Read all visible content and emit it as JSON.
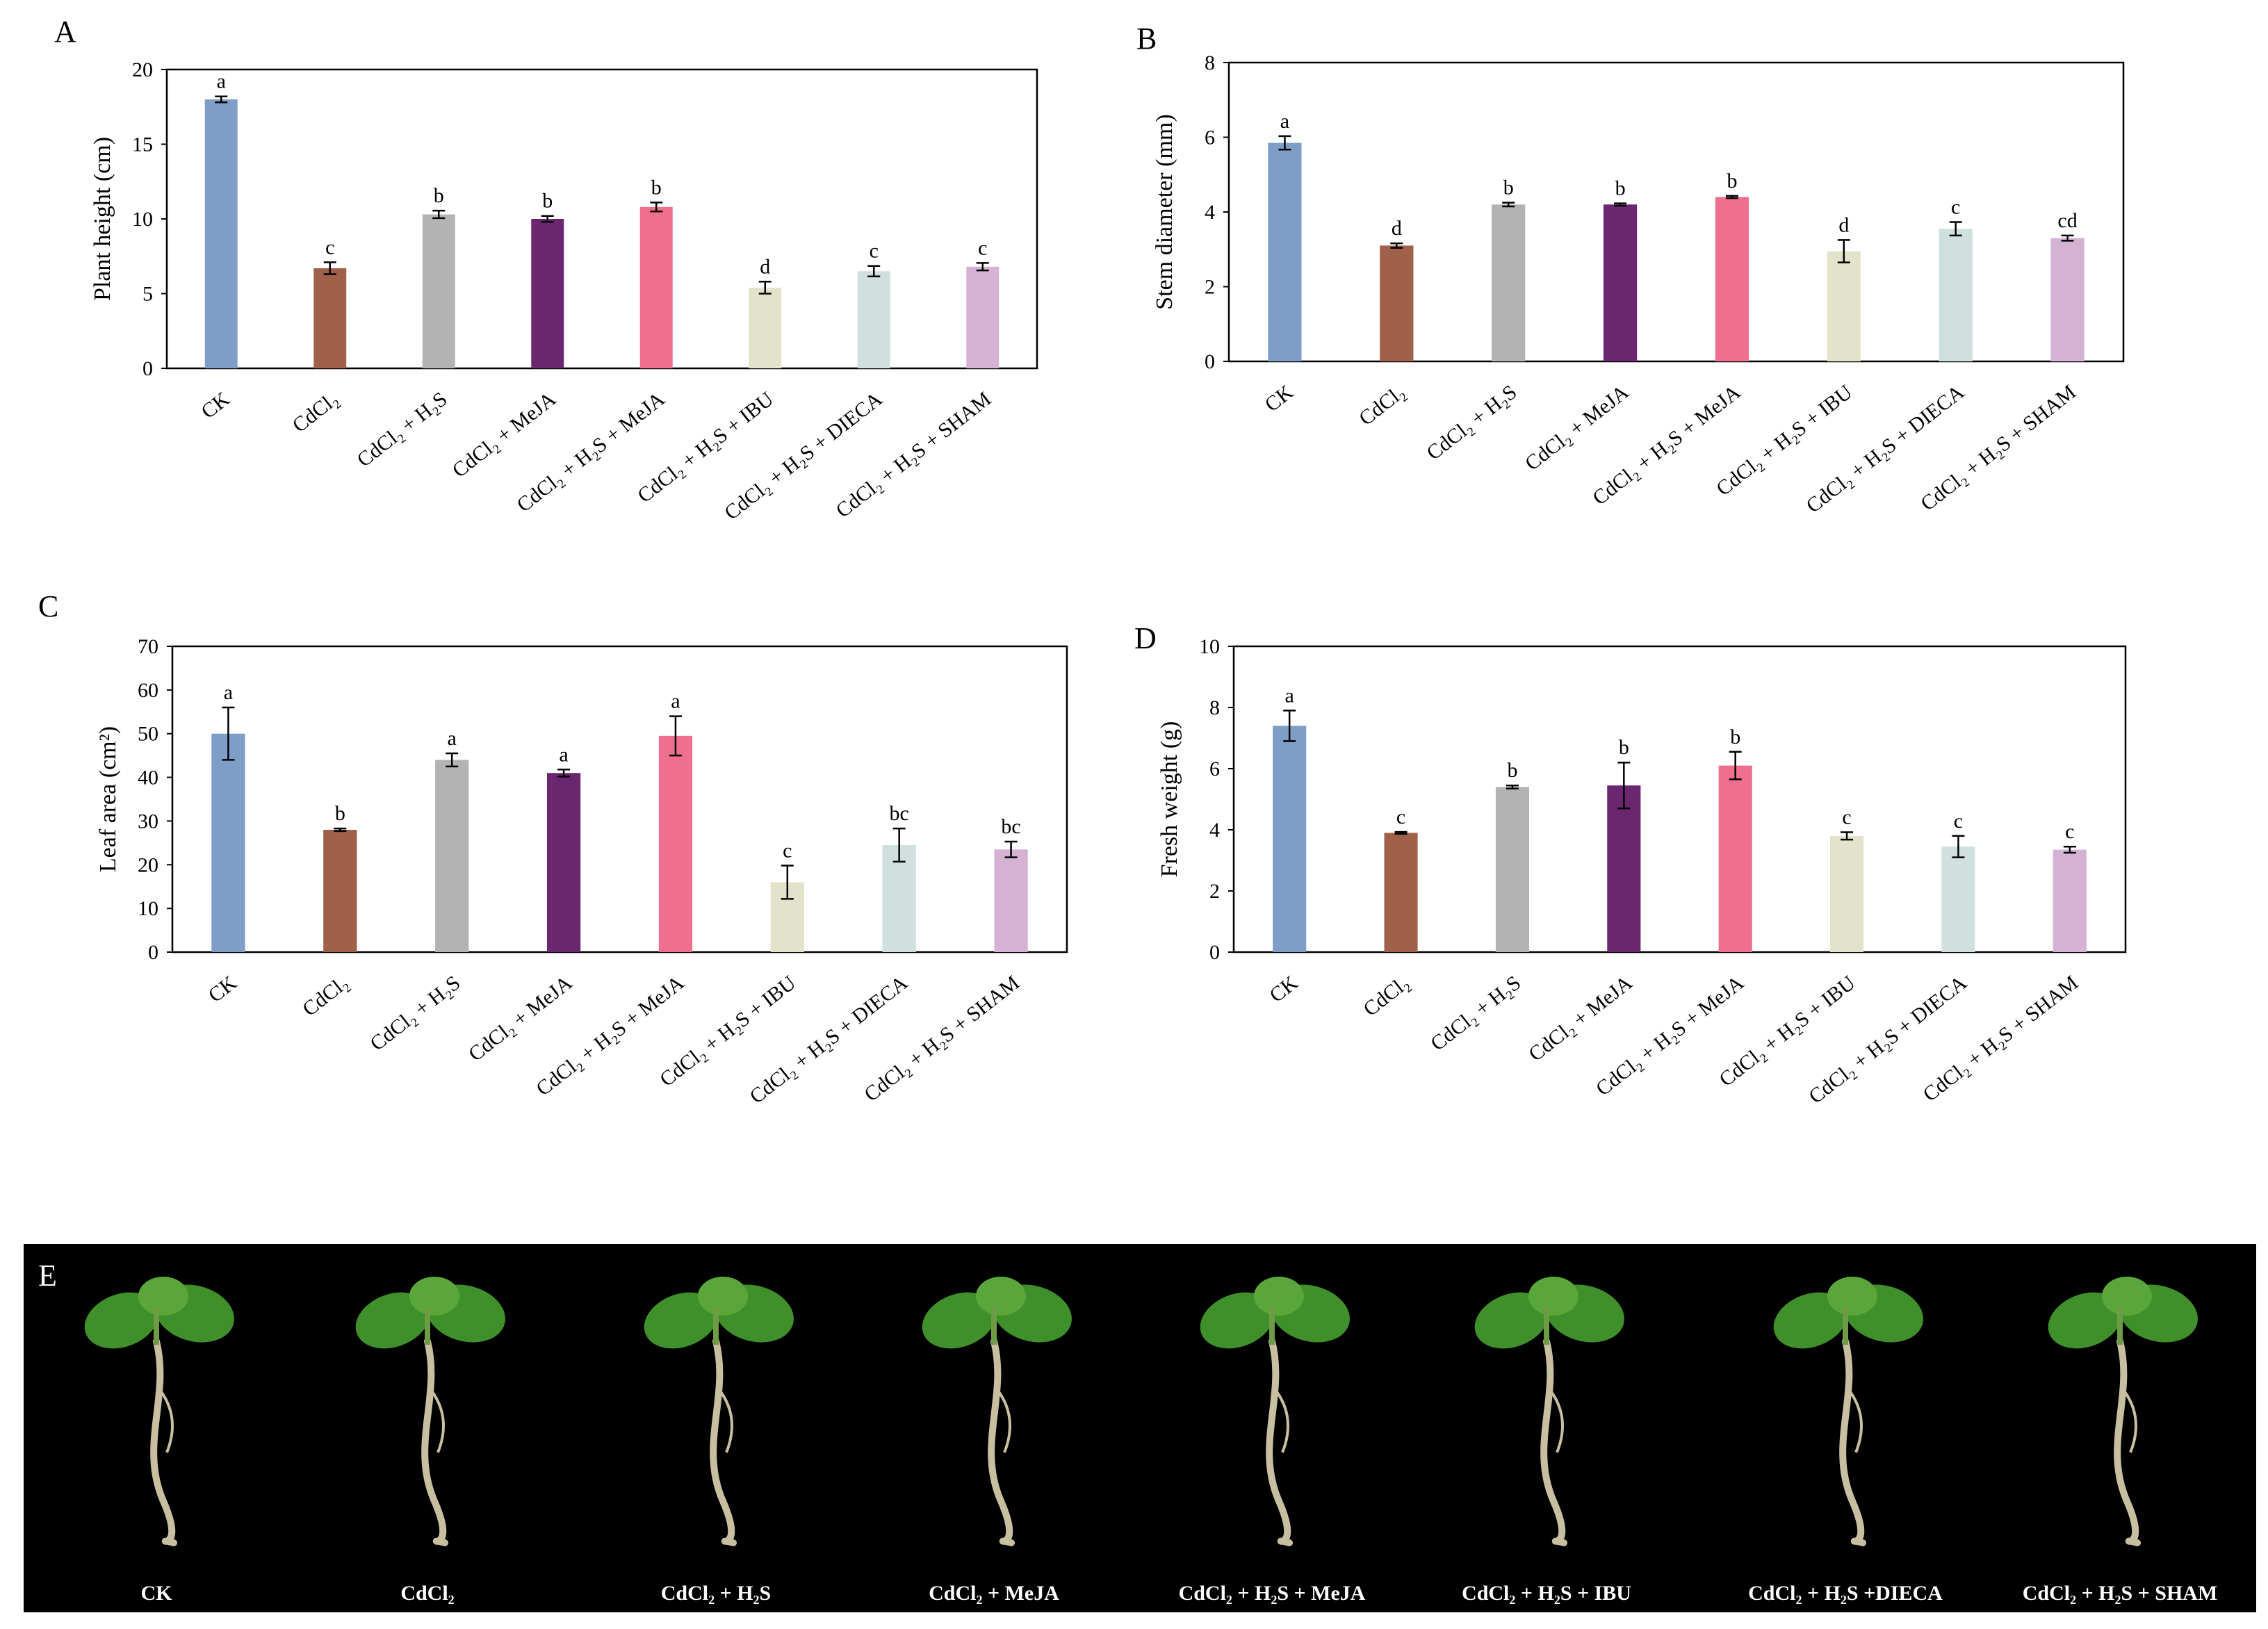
{
  "chart_data": [
    {
      "panel": "A",
      "type": "bar",
      "ylabel": "Plant height (cm)",
      "ylim": [
        0,
        20
      ],
      "yticks": [
        0,
        5,
        10,
        15,
        20
      ],
      "categories": [
        "CK",
        "CdCl₂",
        "CdCl₂ + H₂S",
        "CdCl₂ + MeJA",
        "CdCl₂ + H₂S + MeJA",
        "CdCl₂ + H₂S + IBU",
        "CdCl₂ + H₂S + DIECA",
        "CdCl₂ + H₂S + SHAM"
      ],
      "values": [
        18.0,
        6.7,
        10.3,
        10.0,
        10.8,
        5.4,
        6.5,
        6.8
      ],
      "errors": [
        0.2,
        0.4,
        0.25,
        0.2,
        0.3,
        0.4,
        0.35,
        0.25
      ],
      "labels": [
        "a",
        "c",
        "b",
        "b",
        "b",
        "d",
        "c",
        "c"
      ],
      "colors": [
        "#7f9ec7",
        "#a0614a",
        "#b3b3b3",
        "#6b2670",
        "#ef6f8e",
        "#e3e3cb",
        "#d0e0de",
        "#d5b2d4"
      ],
      "grid": false
    },
    {
      "panel": "B",
      "type": "bar",
      "ylabel": "Stem diameter (mm)",
      "ylim": [
        0,
        8
      ],
      "yticks": [
        0,
        2,
        4,
        6,
        8
      ],
      "categories": [
        "CK",
        "CdCl₂",
        "CdCl₂ + H₂S",
        "CdCl₂ + MeJA",
        "CdCl₂ + H₂S + MeJA",
        "CdCl₂ + H₂S + IBU",
        "CdCl₂ + H₂S + DIECA",
        "CdCl₂ + H₂S + SHAM"
      ],
      "values": [
        5.85,
        3.1,
        4.2,
        4.2,
        4.4,
        2.95,
        3.55,
        3.3
      ],
      "errors": [
        0.18,
        0.06,
        0.05,
        0.03,
        0.03,
        0.3,
        0.18,
        0.07
      ],
      "labels": [
        "a",
        "d",
        "b",
        "b",
        "b",
        "d",
        "c",
        "cd"
      ],
      "colors": [
        "#7f9ec7",
        "#a0614a",
        "#b3b3b3",
        "#6b2670",
        "#ef6f8e",
        "#e3e3cb",
        "#d0e0de",
        "#d5b2d4"
      ],
      "grid": false
    },
    {
      "panel": "C",
      "type": "bar",
      "ylabel": "Leaf area (cm²)",
      "ylim": [
        0,
        70
      ],
      "yticks": [
        0,
        10,
        20,
        30,
        40,
        50,
        60,
        70
      ],
      "categories": [
        "CK",
        "CdCl₂",
        "CdCl₂ + H₂S",
        "CdCl₂ + MeJA",
        "CdCl₂ + H₂S + MeJA",
        "CdCl₂ + H₂S + IBU",
        "CdCl₂ + H₂S + DIECA",
        "CdCl₂ + H₂S + SHAM"
      ],
      "values": [
        50.0,
        28.0,
        44.0,
        41.0,
        49.5,
        16.0,
        24.5,
        23.5
      ],
      "errors": [
        6.0,
        0.3,
        1.5,
        0.8,
        4.5,
        3.8,
        3.8,
        1.8
      ],
      "labels": [
        "a",
        "b",
        "a",
        "a",
        "a",
        "c",
        "bc",
        "bc"
      ],
      "colors": [
        "#7f9ec7",
        "#a0614a",
        "#b3b3b3",
        "#6b2670",
        "#ef6f8e",
        "#e3e3cb",
        "#d0e0de",
        "#d5b2d4"
      ],
      "grid": false
    },
    {
      "panel": "D",
      "type": "bar",
      "ylabel": "Fresh weight (g)",
      "ylim": [
        0,
        10
      ],
      "yticks": [
        0,
        2,
        4,
        6,
        8,
        10
      ],
      "categories": [
        "CK",
        "CdCl₂",
        "CdCl₂ + H₂S",
        "CdCl₂ + MeJA",
        "CdCl₂ + H₂S + MeJA",
        "CdCl₂ + H₂S + IBU",
        "CdCl₂ + H₂S + DIECA",
        "CdCl₂ + H₂S + SHAM"
      ],
      "values": [
        7.4,
        3.9,
        5.4,
        5.45,
        6.1,
        3.8,
        3.45,
        3.35
      ],
      "errors": [
        0.5,
        0.03,
        0.05,
        0.75,
        0.45,
        0.12,
        0.35,
        0.1
      ],
      "labels": [
        "a",
        "c",
        "b",
        "b",
        "b",
        "c",
        "c",
        "c"
      ],
      "colors": [
        "#7f9ec7",
        "#a0614a",
        "#b3b3b3",
        "#6b2670",
        "#ef6f8e",
        "#e3e3cb",
        "#d0e0de",
        "#d5b2d4"
      ],
      "grid": false
    }
  ],
  "photo_panel": {
    "letter": "E",
    "labels": [
      "CK",
      "CdCl₂",
      "CdCl₂ + H₂S",
      "CdCl₂ + MeJA",
      "CdCl₂ + H₂S + MeJA",
      "CdCl₂ + H₂S + IBU",
      "CdCl₂ + H₂S +DIECA",
      "CdCl₂ + H₂S + SHAM"
    ],
    "background": "#000000",
    "leaf_color": "#3f8f2a",
    "root_color": "#c8bfa0"
  }
}
